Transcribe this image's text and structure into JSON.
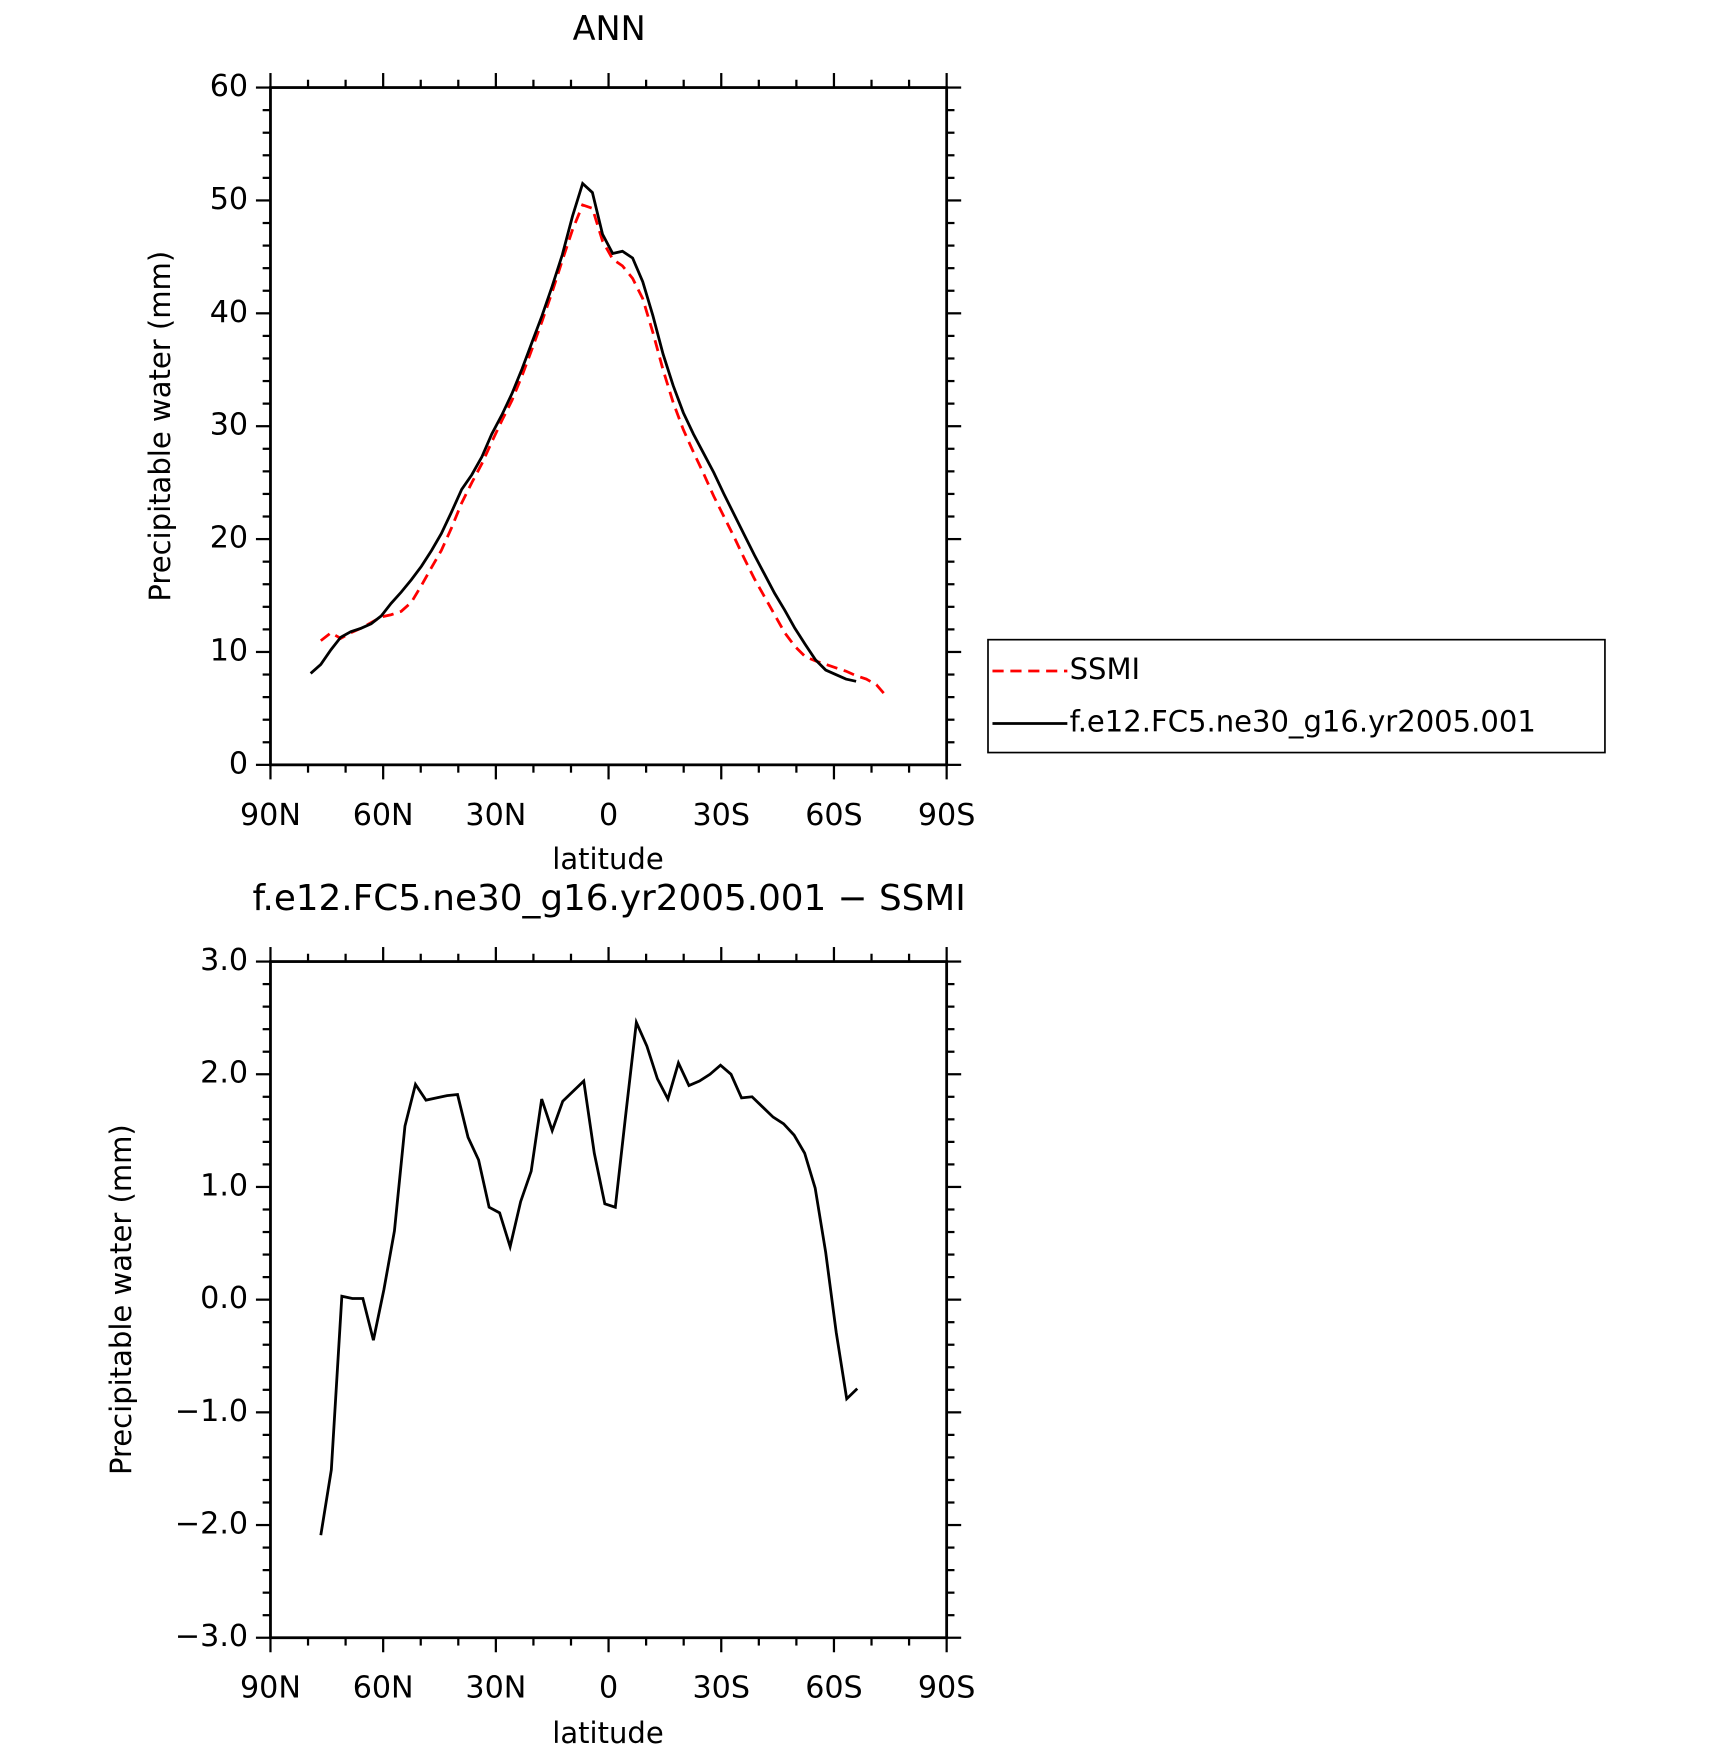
{
  "chart_data": [
    {
      "type": "line",
      "title": "ANN",
      "x_label": "latitude",
      "y_label": "Precipitable water (mm)",
      "xlim": [
        90,
        -90
      ],
      "xticks": [
        {
          "value": 90,
          "label": "90N"
        },
        {
          "value": 60,
          "label": "60N"
        },
        {
          "value": 30,
          "label": "30N"
        },
        0,
        {
          "value": -30,
          "label": "30S"
        },
        {
          "value": -60,
          "label": "60S"
        },
        {
          "value": -90,
          "label": "90S"
        }
      ],
      "ylim": [
        0,
        60
      ],
      "yticks": [
        0,
        10,
        20,
        30,
        40,
        50,
        60
      ],
      "legend": "right",
      "series": [
        {
          "name": "SSMI",
          "color": "#ff0000",
          "dashed": true,
          "x": [
            76.6,
            73.9,
            71.3,
            68.6,
            65.9,
            63.2,
            60.5,
            57.9,
            55.2,
            52.5,
            49.8,
            47.1,
            44.5,
            41.8,
            39.1,
            36.4,
            33.7,
            31.1,
            28.4,
            25.7,
            23.0,
            20.3,
            17.7,
            15.0,
            12.3,
            9.6,
            6.9,
            4.3,
            1.6,
            -1.1,
            -3.7,
            -6.4,
            -9.1,
            -11.8,
            -14.5,
            -17.2,
            -19.9,
            -22.6,
            -25.3,
            -28.0,
            -30.7,
            -33.4,
            -36.1,
            -38.8,
            -41.5,
            -44.2,
            -46.9,
            -49.6,
            -52.3,
            -55.1,
            -57.8,
            -60.5,
            -63.2,
            -65.9,
            -68.6,
            -71.3,
            -73.9
          ],
          "values": [
            11.0,
            11.7,
            11.2,
            11.7,
            12.1,
            12.6,
            13.1,
            13.3,
            13.6,
            14.4,
            15.9,
            17.5,
            19.0,
            21.0,
            23.2,
            25.0,
            26.7,
            28.6,
            30.5,
            32.3,
            34.5,
            36.9,
            39.3,
            41.9,
            44.7,
            47.4,
            49.6,
            49.3,
            46.4,
            44.8,
            44.2,
            43.1,
            41.3,
            38.3,
            35.0,
            32.1,
            29.7,
            27.7,
            25.8,
            23.8,
            22.0,
            20.2,
            18.3,
            16.5,
            14.9,
            13.3,
            11.7,
            10.5,
            9.6,
            9.2,
            8.9,
            8.6,
            8.3,
            7.9,
            7.6,
            7.1,
            6.1
          ]
        },
        {
          "name": "f.e12.FC5.ne30_g16.yr2005.001",
          "color": "#000000",
          "dashed": false,
          "x": [
            79.3,
            76.6,
            73.9,
            71.3,
            68.6,
            65.9,
            63.2,
            60.5,
            57.9,
            55.2,
            52.5,
            49.8,
            47.1,
            44.5,
            41.8,
            39.1,
            36.4,
            33.7,
            31.1,
            28.4,
            25.7,
            23.0,
            20.3,
            17.7,
            15.0,
            12.3,
            9.6,
            6.9,
            4.3,
            1.6,
            -1.1,
            -3.7,
            -6.4,
            -9.1,
            -11.8,
            -14.5,
            -17.2,
            -19.9,
            -22.6,
            -25.3,
            -28.0,
            -30.7,
            -33.4,
            -36.1,
            -38.8,
            -41.5,
            -44.2,
            -46.9,
            -49.6,
            -52.3,
            -55.1,
            -57.8,
            -60.5,
            -63.2,
            -65.9
          ],
          "values": [
            8.1,
            8.9,
            10.2,
            11.3,
            11.8,
            12.1,
            12.5,
            13.2,
            14.3,
            15.3,
            16.4,
            17.6,
            19.0,
            20.5,
            22.4,
            24.4,
            25.7,
            27.3,
            29.3,
            31.0,
            32.9,
            35.1,
            37.5,
            39.8,
            42.4,
            45.2,
            48.6,
            51.5,
            50.7,
            47.0,
            45.3,
            45.5,
            44.9,
            42.8,
            39.8,
            36.4,
            33.6,
            31.2,
            29.3,
            27.6,
            25.9,
            24.0,
            22.2,
            20.4,
            18.6,
            16.9,
            15.2,
            13.7,
            12.1,
            10.7,
            9.3,
            8.4,
            8.0,
            7.6,
            7.4
          ]
        }
      ]
    },
    {
      "type": "line",
      "title": "f.e12.FC5.ne30_g16.yr2005.001 − SSMI",
      "x_label": "latitude",
      "y_label": "Precipitable water (mm)",
      "xlim": [
        90,
        -90
      ],
      "xticks": [
        {
          "value": 90,
          "label": "90N"
        },
        {
          "value": 60,
          "label": "60N"
        },
        {
          "value": 30,
          "label": "30N"
        },
        0,
        {
          "value": -30,
          "label": "30S"
        },
        {
          "value": -60,
          "label": "60S"
        },
        {
          "value": -90,
          "label": "90S"
        }
      ],
      "ylim": [
        -3,
        3
      ],
      "yticks": [
        {
          "value": -3,
          "label": "−3.0"
        },
        {
          "value": -2,
          "label": "−2.0"
        },
        {
          "value": -1,
          "label": "−1.0"
        },
        {
          "value": 0,
          "label": "0.0"
        },
        {
          "value": 1,
          "label": "1.0"
        },
        {
          "value": 2,
          "label": "2.0"
        },
        {
          "value": 3,
          "label": "3.0"
        }
      ],
      "series": [
        {
          "color": "#000000",
          "dashed": false,
          "x": [
            76.6,
            73.8,
            71.0,
            68.2,
            65.4,
            62.6,
            59.8,
            57.0,
            54.2,
            51.4,
            48.6,
            45.8,
            43.0,
            40.2,
            37.4,
            34.6,
            31.8,
            29.0,
            26.2,
            23.4,
            20.6,
            17.8,
            15.0,
            12.2,
            9.4,
            6.6,
            3.8,
            1.0,
            -1.8,
            -4.6,
            -7.4,
            -10.2,
            -13.0,
            -15.8,
            -18.6,
            -21.4,
            -24.2,
            -27.0,
            -29.8,
            -32.6,
            -35.4,
            -38.2,
            -41.0,
            -43.8,
            -46.6,
            -49.4,
            -52.2,
            -55.0,
            -57.8,
            -60.6,
            -63.4,
            -66.2
          ],
          "values": [
            -2.09,
            -1.51,
            0.03,
            0.01,
            0.01,
            -0.36,
            0.09,
            0.61,
            1.54,
            1.91,
            1.77,
            1.79,
            1.81,
            1.82,
            1.44,
            1.24,
            0.82,
            0.77,
            0.47,
            0.87,
            1.14,
            1.78,
            1.5,
            1.76,
            1.85,
            1.94,
            1.3,
            0.85,
            0.82,
            1.65,
            2.46,
            2.25,
            1.96,
            1.78,
            2.1,
            1.9,
            1.94,
            2.0,
            2.08,
            2.0,
            1.79,
            1.8,
            1.71,
            1.62,
            1.56,
            1.46,
            1.3,
            0.99,
            0.42,
            -0.29,
            -0.88,
            -0.79
          ]
        }
      ]
    }
  ]
}
